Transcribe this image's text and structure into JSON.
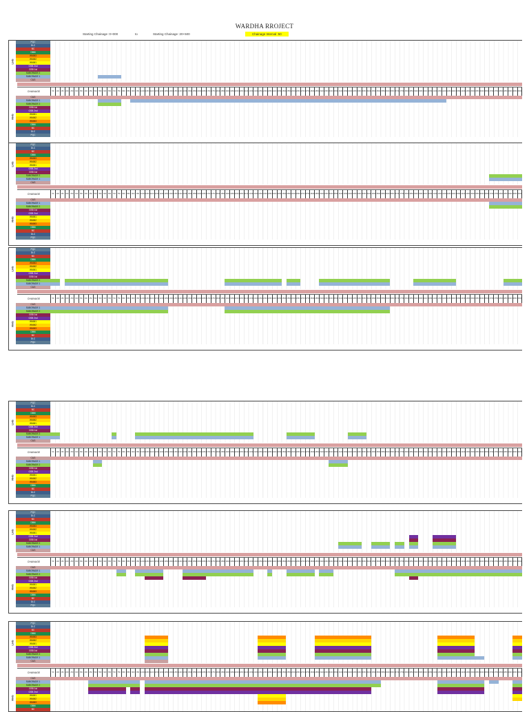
{
  "title": "WARDHA RROJECT",
  "header": {
    "start": "Starting Chainage :0+000",
    "to": "to",
    "end": "Starting Chainage :20+500",
    "interval": "Chainage Interval :50"
  },
  "chainage_label": "CHAINAGE",
  "side_labels": {
    "lhs": "LHS",
    "rhs": "RHS"
  },
  "layer_colors": {
    "PQC": "#5b7b94",
    "DLC": "#3e5f8a",
    "BC": "#c0392b",
    "DBM": "#1e8c4a",
    "WMM3": "#ff8c00",
    "WMM2": "#ffd700",
    "WMM1": "#ffff00",
    "GSB 2nd": "#7030a0",
    "GSB 1st": "#8b2252",
    "SUBGRADE 2": "#92d050",
    "SUBGRADE 1": "#95b3d7",
    "C&G": "#c9a0a0"
  },
  "layers_lhs": [
    "PQC",
    "DLC",
    "BC",
    "DBM",
    "WMM3",
    "WMM2",
    "WMM1",
    "GSB 2nd",
    "GSB 1st",
    "SUBGRADE 2",
    "SUBGRADE 1",
    "C&G"
  ],
  "layers_rhs": [
    "C&G",
    "SUBGRADE 1",
    "SUBGRADE 2",
    "GSB 1st",
    "GSB 2nd",
    "WMM1",
    "WMM2",
    "WMM3",
    "DBM",
    "BC",
    "DLC",
    "PQC"
  ],
  "chainage_values": [
    "50",
    "100",
    "150",
    "200",
    "250",
    "300",
    "350",
    "400",
    "450",
    "500",
    "550",
    "600",
    "650",
    "700",
    "750",
    "800",
    "850",
    "900",
    "950",
    "1000",
    "1050",
    "1100",
    "1150",
    "1200",
    "1250",
    "1300",
    "1350",
    "1400",
    "1450",
    "1500",
    "1550",
    "1600",
    "1650",
    "1700",
    "1750",
    "1800",
    "1850",
    "1900",
    "1950",
    "2000",
    "2050",
    "2100",
    "2150",
    "2200",
    "2250",
    "2300",
    "2350",
    "2400",
    "2450",
    "2500",
    "2550",
    "2600",
    "2650",
    "2700",
    "2750",
    "2800",
    "2850",
    "2900",
    "2950",
    "3000",
    "3050",
    "3100",
    "3150",
    "3200",
    "3250",
    "3300",
    "3350",
    "3400",
    "3450",
    "3500",
    "3550",
    "3600",
    "3650",
    "3700",
    "3750",
    "3800",
    "3850",
    "3900",
    "3950",
    "4000",
    "4050",
    "4100",
    "4150",
    "4200",
    "4250",
    "4300",
    "4350",
    "4400",
    "4450",
    "4500",
    "4550",
    "4600",
    "4650",
    "4700",
    "4750",
    "4800",
    "4850",
    "4900",
    "4950",
    "5000",
    "5050",
    "5100"
  ],
  "blocks": [
    {
      "lhs": [
        {
          "layer": "SUBGRADE 1",
          "from": 10,
          "to": 15
        }
      ],
      "rhs": [
        {
          "layer": "SUBGRADE 1",
          "from": 10,
          "to": 15
        },
        {
          "layer": "SUBGRADE 2",
          "from": 10,
          "to": 15
        },
        {
          "layer": "SUBGRADE 1",
          "from": 17,
          "to": 84
        }
      ]
    },
    {
      "lhs": [
        {
          "layer": "SUBGRADE 2",
          "from": 93,
          "to": 101
        },
        {
          "layer": "SUBGRADE 1",
          "from": 93,
          "to": 101
        }
      ],
      "rhs": [
        {
          "layer": "SUBGRADE 1",
          "from": 93,
          "to": 101
        },
        {
          "layer": "SUBGRADE 2",
          "from": 93,
          "to": 101
        }
      ]
    },
    {
      "lhs": [
        {
          "layer": "SUBGRADE 2",
          "from": 0,
          "to": 1
        },
        {
          "layer": "SUBGRADE 1",
          "from": 0,
          "to": 1
        },
        {
          "layer": "SUBGRADE 2",
          "from": 1,
          "to": 2
        },
        {
          "layer": "SUBGRADE 1",
          "from": 1,
          "to": 2
        },
        {
          "layer": "SUBGRADE 2",
          "from": 3,
          "to": 25
        },
        {
          "layer": "SUBGRADE 1",
          "from": 3,
          "to": 25
        },
        {
          "layer": "SUBGRADE 2",
          "from": 37,
          "to": 49
        },
        {
          "layer": "SUBGRADE 1",
          "from": 37,
          "to": 49
        },
        {
          "layer": "SUBGRADE 2",
          "from": 50,
          "to": 53
        },
        {
          "layer": "SUBGRADE 1",
          "from": 50,
          "to": 53
        },
        {
          "layer": "SUBGRADE 2",
          "from": 57,
          "to": 72
        },
        {
          "layer": "SUBGRADE 1",
          "from": 57,
          "to": 72
        },
        {
          "layer": "SUBGRADE 2",
          "from": 77,
          "to": 86
        },
        {
          "layer": "SUBGRADE 1",
          "from": 77,
          "to": 86
        },
        {
          "layer": "SUBGRADE 2",
          "from": 96,
          "to": 101
        },
        {
          "layer": "SUBGRADE 1",
          "from": 96,
          "to": 101
        }
      ],
      "rhs": [
        {
          "layer": "SUBGRADE 1",
          "from": 0,
          "to": 25
        },
        {
          "layer": "SUBGRADE 2",
          "from": 0,
          "to": 25
        },
        {
          "layer": "SUBGRADE 1",
          "from": 37,
          "to": 72
        },
        {
          "layer": "SUBGRADE 2",
          "from": 37,
          "to": 72
        }
      ]
    },
    {
      "lhs": [
        {
          "layer": "SUBGRADE 2",
          "from": 0,
          "to": 2
        },
        {
          "layer": "SUBGRADE 1",
          "from": 0,
          "to": 2
        },
        {
          "layer": "SUBGRADE 2",
          "from": 13,
          "to": 14
        },
        {
          "layer": "SUBGRADE 1",
          "from": 13,
          "to": 14
        },
        {
          "layer": "SUBGRADE 2",
          "from": 18,
          "to": 43
        },
        {
          "layer": "SUBGRADE 1",
          "from": 18,
          "to": 43
        },
        {
          "layer": "SUBGRADE 2",
          "from": 50,
          "to": 56
        },
        {
          "layer": "SUBGRADE 1",
          "from": 50,
          "to": 56
        },
        {
          "layer": "SUBGRADE 2",
          "from": 63,
          "to": 67
        },
        {
          "layer": "SUBGRADE 1",
          "from": 63,
          "to": 67
        }
      ],
      "rhs": [
        {
          "layer": "SUBGRADE 1",
          "from": 9,
          "to": 11
        },
        {
          "layer": "SUBGRADE 2",
          "from": 9,
          "to": 11
        },
        {
          "layer": "SUBGRADE 1",
          "from": 59,
          "to": 63
        },
        {
          "layer": "SUBGRADE 2",
          "from": 59,
          "to": 63
        }
      ]
    },
    {
      "lhs": [
        {
          "layer": "SUBGRADE 2",
          "from": 61,
          "to": 66
        },
        {
          "layer": "SUBGRADE 1",
          "from": 61,
          "to": 66
        },
        {
          "layer": "SUBGRADE 2",
          "from": 68,
          "to": 72
        },
        {
          "layer": "SUBGRADE 1",
          "from": 68,
          "to": 72
        },
        {
          "layer": "SUBGRADE 2",
          "from": 73,
          "to": 75
        },
        {
          "layer": "SUBGRADE 1",
          "from": 73,
          "to": 75
        },
        {
          "layer": "SUBGRADE 2",
          "from": 76,
          "to": 78
        },
        {
          "layer": "SUBGRADE 1",
          "from": 76,
          "to": 78
        },
        {
          "layer": "GSB 1st",
          "from": 76,
          "to": 78
        },
        {
          "layer": "GSB 2nd",
          "from": 76,
          "to": 78
        },
        {
          "layer": "SUBGRADE 2",
          "from": 81,
          "to": 86
        },
        {
          "layer": "SUBGRADE 1",
          "from": 81,
          "to": 86
        },
        {
          "layer": "GSB 1st",
          "from": 81,
          "to": 86
        },
        {
          "layer": "GSB 2nd",
          "from": 81,
          "to": 86
        }
      ],
      "rhs": [
        {
          "layer": "SUBGRADE 1",
          "from": 14,
          "to": 16
        },
        {
          "layer": "SUBGRADE 2",
          "from": 14,
          "to": 16
        },
        {
          "layer": "SUBGRADE 1",
          "from": 18,
          "to": 24
        },
        {
          "layer": "SUBGRADE 2",
          "from": 18,
          "to": 24
        },
        {
          "layer": "GSB 1st",
          "from": 20,
          "to": 24
        },
        {
          "layer": "SUBGRADE 1",
          "from": 28,
          "to": 43
        },
        {
          "layer": "SUBGRADE 2",
          "from": 28,
          "to": 43
        },
        {
          "layer": "GSB 1st",
          "from": 28,
          "to": 33
        },
        {
          "layer": "SUBGRADE 1",
          "from": 46,
          "to": 47
        },
        {
          "layer": "SUBGRADE 2",
          "from": 46,
          "to": 47
        },
        {
          "layer": "SUBGRADE 1",
          "from": 50,
          "to": 56
        },
        {
          "layer": "SUBGRADE 2",
          "from": 50,
          "to": 56
        },
        {
          "layer": "SUBGRADE 1",
          "from": 57,
          "to": 60
        },
        {
          "layer": "SUBGRADE 2",
          "from": 57,
          "to": 60
        },
        {
          "layer": "SUBGRADE 1",
          "from": 73,
          "to": 101
        },
        {
          "layer": "SUBGRADE 2",
          "from": 73,
          "to": 101
        },
        {
          "layer": "GSB 1st",
          "from": 76,
          "to": 78
        }
      ]
    },
    {
      "lhs": [
        {
          "layer": "C&G",
          "from": 20,
          "to": 25
        },
        {
          "layer": "SUBGRADE 1",
          "from": 20,
          "to": 25
        },
        {
          "layer": "SUBGRADE 2",
          "from": 20,
          "to": 25
        },
        {
          "layer": "GSB 1st",
          "from": 20,
          "to": 25
        },
        {
          "layer": "GSB 2nd",
          "from": 20,
          "to": 25
        },
        {
          "layer": "WMM1",
          "from": 20,
          "to": 25
        },
        {
          "layer": "WMM2",
          "from": 20,
          "to": 25
        },
        {
          "layer": "WMM3",
          "from": 20,
          "to": 25
        },
        {
          "layer": "SUBGRADE 1",
          "from": 44,
          "to": 50
        },
        {
          "layer": "SUBGRADE 2",
          "from": 44,
          "to": 50
        },
        {
          "layer": "GSB 1st",
          "from": 44,
          "to": 50
        },
        {
          "layer": "GSB 2nd",
          "from": 44,
          "to": 50
        },
        {
          "layer": "WMM1",
          "from": 44,
          "to": 50
        },
        {
          "layer": "WMM2",
          "from": 44,
          "to": 50
        },
        {
          "layer": "WMM3",
          "from": 44,
          "to": 50
        },
        {
          "layer": "SUBGRADE 1",
          "from": 56,
          "to": 68
        },
        {
          "layer": "SUBGRADE 2",
          "from": 56,
          "to": 68
        },
        {
          "layer": "GSB 1st",
          "from": 56,
          "to": 68
        },
        {
          "layer": "GSB 2nd",
          "from": 56,
          "to": 68
        },
        {
          "layer": "WMM1",
          "from": 56,
          "to": 68
        },
        {
          "layer": "WMM2",
          "from": 56,
          "to": 68
        },
        {
          "layer": "WMM3",
          "from": 56,
          "to": 68
        },
        {
          "layer": "SUBGRADE 1",
          "from": 82,
          "to": 92
        },
        {
          "layer": "SUBGRADE 2",
          "from": 82,
          "to": 90
        },
        {
          "layer": "GSB 1st",
          "from": 82,
          "to": 90
        },
        {
          "layer": "GSB 2nd",
          "from": 82,
          "to": 90
        },
        {
          "layer": "WMM1",
          "from": 82,
          "to": 90
        },
        {
          "layer": "WMM2",
          "from": 82,
          "to": 90
        },
        {
          "layer": "WMM3",
          "from": 82,
          "to": 90
        },
        {
          "layer": "SUBGRADE 1",
          "from": 98,
          "to": 101
        },
        {
          "layer": "SUBGRADE 2",
          "from": 98,
          "to": 101
        },
        {
          "layer": "GSB 1st",
          "from": 98,
          "to": 101
        },
        {
          "layer": "GSB 2nd",
          "from": 98,
          "to": 101
        },
        {
          "layer": "WMM1",
          "from": 98,
          "to": 101
        },
        {
          "layer": "WMM2",
          "from": 98,
          "to": 101
        },
        {
          "layer": "WMM3",
          "from": 98,
          "to": 101
        }
      ],
      "rhs": [
        {
          "layer": "SUBGRADE 1",
          "from": 8,
          "to": 19
        },
        {
          "layer": "SUBGRADE 2",
          "from": 8,
          "to": 19
        },
        {
          "layer": "GSB 1st",
          "from": 8,
          "to": 16
        },
        {
          "layer": "GSB 2nd",
          "from": 8,
          "to": 16
        },
        {
          "layer": "SUBGRADE 1",
          "from": 20,
          "to": 70
        },
        {
          "layer": "SUBGRADE 2",
          "from": 20,
          "to": 70
        },
        {
          "layer": "GSB 1st",
          "from": 17,
          "to": 19
        },
        {
          "layer": "GSB 2nd",
          "from": 17,
          "to": 19
        },
        {
          "layer": "GSB 1st",
          "from": 20,
          "to": 68
        },
        {
          "layer": "GSB 2nd",
          "from": 20,
          "to": 68
        },
        {
          "layer": "WMM1",
          "from": 44,
          "to": 50
        },
        {
          "layer": "WMM2",
          "from": 44,
          "to": 50
        },
        {
          "layer": "WMM3",
          "from": 44,
          "to": 50
        },
        {
          "layer": "SUBGRADE 1",
          "from": 82,
          "to": 92
        },
        {
          "layer": "SUBGRADE 2",
          "from": 82,
          "to": 92
        },
        {
          "layer": "GSB 1st",
          "from": 82,
          "to": 92
        },
        {
          "layer": "GSB 2nd",
          "from": 82,
          "to": 92
        },
        {
          "layer": "SUBGRADE 1",
          "from": 93,
          "to": 95
        },
        {
          "layer": "SUBGRADE 1",
          "from": 98,
          "to": 101
        },
        {
          "layer": "SUBGRADE 2",
          "from": 98,
          "to": 101
        },
        {
          "layer": "GSB 1st",
          "from": 98,
          "to": 101
        },
        {
          "layer": "GSB 2nd",
          "from": 98,
          "to": 101
        },
        {
          "layer": "WMM1",
          "from": 98,
          "to": 101
        },
        {
          "layer": "WMM2",
          "from": 98,
          "to": 101
        }
      ]
    }
  ]
}
